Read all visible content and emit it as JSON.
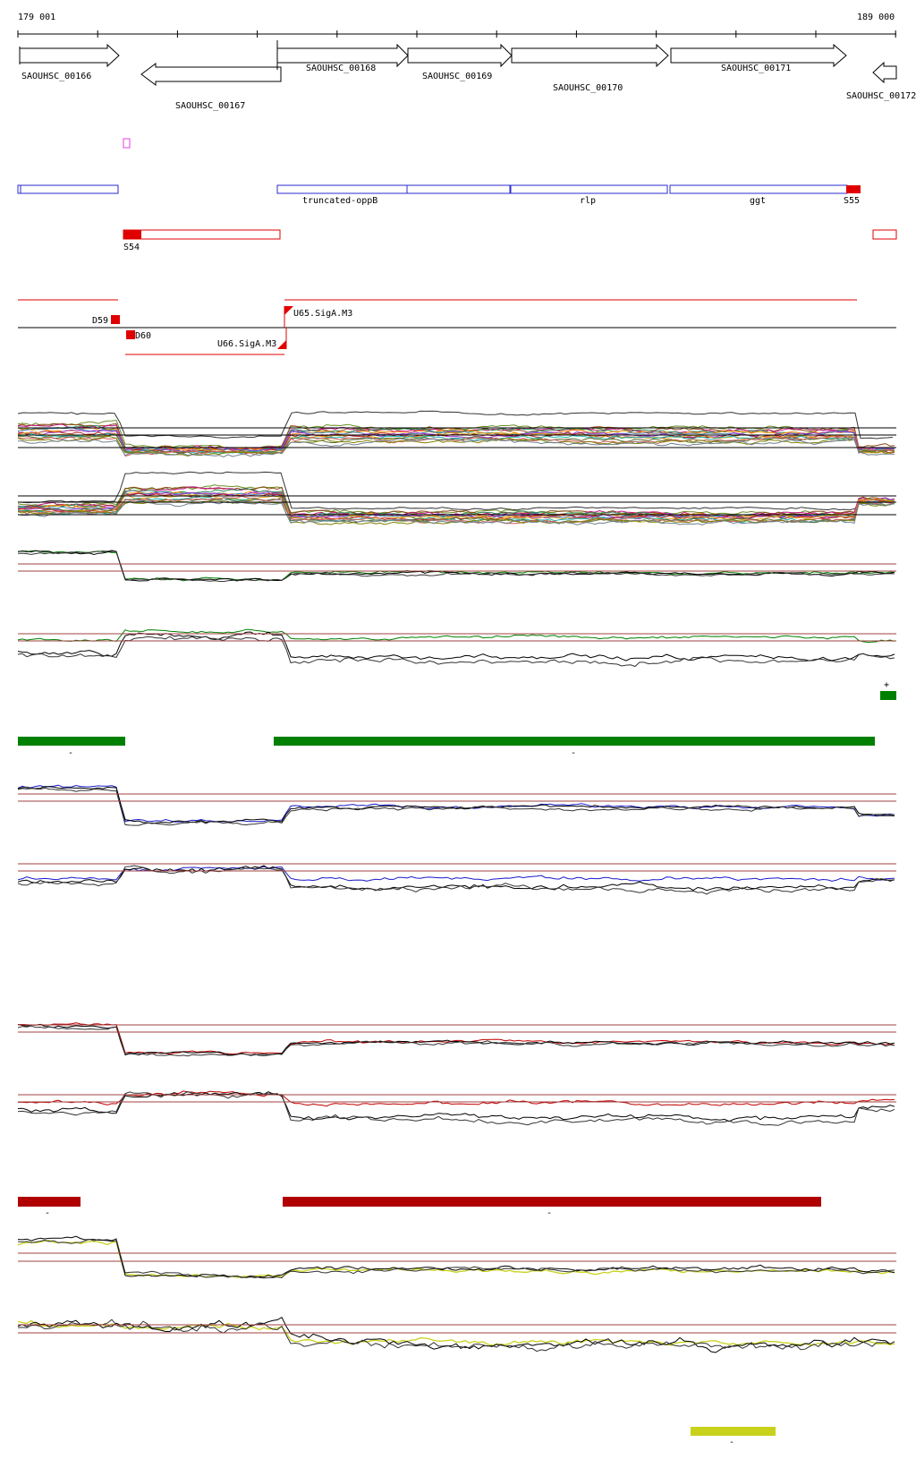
{
  "ruler": {
    "start_label": "179 001",
    "end_label": "189 000"
  },
  "genes": [
    {
      "id": "SAOUHSC_00166"
    },
    {
      "id": "SAOUHSC_00167"
    },
    {
      "id": "SAOUHSC_00168"
    },
    {
      "id": "SAOUHSC_00169"
    },
    {
      "id": "SAOUHSC_00170"
    },
    {
      "id": "SAOUHSC_00171"
    },
    {
      "id": "SAOUHSC_00172"
    }
  ],
  "gene_names": {
    "oppB": "truncated-oppB",
    "rlp": "rlp",
    "ggt": "ggt"
  },
  "segments": {
    "s55": "S55",
    "s54": "S54"
  },
  "promoters": {
    "d59": "D59",
    "d60": "D60",
    "u65": "U65.SigA.M3",
    "u66": "U66.SigA.M3"
  },
  "strand_marks": {
    "plus": "+",
    "minus": "-"
  },
  "colors": {
    "gene_outline": "#000000",
    "annotation_blue": "#2b2bd0",
    "segment_red": "#e00000",
    "track_green": "#008000",
    "track_blue": "#1a1acc",
    "track_red": "#c00000",
    "track_yellow": "#c8d21a",
    "bar_darkred": "#b00000",
    "threshold_line": "#a04040",
    "magenta": "#e040e0"
  }
}
